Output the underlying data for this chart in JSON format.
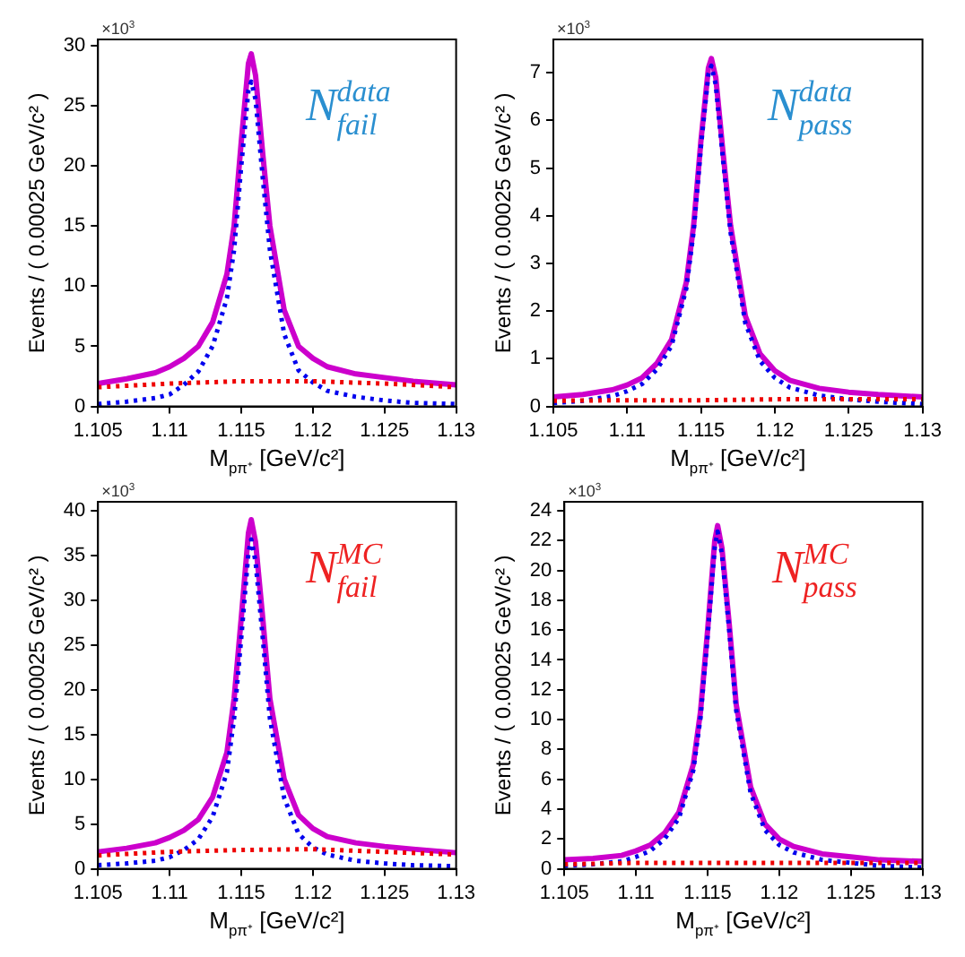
{
  "chart_data": [
    {
      "type": "line",
      "title": "N$^{data}$$_{fail}$",
      "xlabel": "M$_{pπ⁺}$ [GeV/c²]",
      "ylabel": "Events / ( 0.00025 GeV/c² )",
      "annotations": [
        "×10$^{3}$"
      ],
      "xlim": [
        1.105,
        1.13
      ],
      "xticks": [
        1.105,
        1.11,
        1.115,
        1.12,
        1.125,
        1.13
      ],
      "ylim": [
        0,
        30.5
      ],
      "yticks": [
        0,
        5,
        10,
        15,
        20,
        25,
        30
      ],
      "grid": false,
      "legend": false,
      "marker": "none",
      "x": [
        1.105,
        1.107,
        1.109,
        1.11,
        1.111,
        1.112,
        1.113,
        1.114,
        1.1145,
        1.115,
        1.1155,
        1.1157,
        1.116,
        1.1165,
        1.117,
        1.118,
        1.119,
        1.12,
        1.121,
        1.123,
        1.125,
        1.127,
        1.13
      ],
      "series": [
        {
          "color": "#cc00cc",
          "line_style": "solid",
          "values": [
            1.9,
            2.3,
            2.8,
            3.3,
            4.0,
            5.0,
            7.0,
            11,
            15,
            22,
            28.5,
            29.3,
            27.5,
            21,
            15,
            8,
            5,
            4,
            3.3,
            2.7,
            2.4,
            2.1,
            1.8
          ]
        },
        {
          "color": "#0000ee",
          "line_style": "dotted",
          "values": [
            0.2,
            0.4,
            0.7,
            1.0,
            1.8,
            2.9,
            5,
            9,
            13,
            20,
            26.3,
            27,
            25.5,
            19,
            13,
            6,
            3,
            2,
            1.3,
            0.8,
            0.5,
            0.3,
            0.2
          ]
        },
        {
          "color": "#ee0000",
          "line_style": "dotted",
          "x": [
            1.105,
            1.11,
            1.115,
            1.12,
            1.125,
            1.13
          ],
          "values": [
            1.6,
            1.9,
            2.1,
            2.1,
            1.9,
            1.6
          ]
        }
      ]
    },
    {
      "type": "line",
      "title": "N$^{data}$$_{pass}$",
      "xlabel": "M$_{pπ⁺}$ [GeV/c²]",
      "ylabel": "Events / ( 0.00025 GeV/c² )",
      "annotations": [
        "×10$^{3}$"
      ],
      "xlim": [
        1.105,
        1.13
      ],
      "xticks": [
        1.105,
        1.11,
        1.115,
        1.12,
        1.125,
        1.13
      ],
      "ylim": [
        0,
        7.7
      ],
      "yticks": [
        0,
        1,
        2,
        3,
        4,
        5,
        6,
        7
      ],
      "grid": false,
      "legend": false,
      "marker": "none",
      "x": [
        1.105,
        1.107,
        1.109,
        1.11,
        1.111,
        1.112,
        1.113,
        1.114,
        1.1145,
        1.115,
        1.1155,
        1.1157,
        1.116,
        1.1165,
        1.117,
        1.118,
        1.119,
        1.12,
        1.121,
        1.123,
        1.125,
        1.127,
        1.13
      ],
      "series": [
        {
          "color": "#cc00cc",
          "line_style": "solid",
          "values": [
            0.2,
            0.25,
            0.35,
            0.45,
            0.6,
            0.9,
            1.4,
            2.6,
            3.8,
            5.6,
            7.1,
            7.3,
            6.9,
            5.3,
            3.8,
            1.9,
            1.1,
            0.75,
            0.55,
            0.38,
            0.3,
            0.25,
            0.2
          ]
        },
        {
          "color": "#0000ee",
          "line_style": "dotted",
          "values": [
            0.07,
            0.12,
            0.22,
            0.32,
            0.47,
            0.77,
            1.27,
            2.47,
            3.67,
            5.47,
            6.97,
            7.15,
            6.75,
            5.15,
            3.65,
            1.75,
            0.95,
            0.6,
            0.4,
            0.23,
            0.15,
            0.1,
            0.05
          ]
        },
        {
          "color": "#ee0000",
          "line_style": "dotted",
          "x": [
            1.105,
            1.11,
            1.115,
            1.12,
            1.125,
            1.13
          ],
          "values": [
            0.12,
            0.13,
            0.13,
            0.15,
            0.15,
            0.15
          ]
        }
      ]
    },
    {
      "type": "line",
      "title": "N$^{MC}$$_{fail}$",
      "xlabel": "M$_{pπ⁺}$ [GeV/c²]",
      "ylabel": "Events / ( 0.00025 GeV/c² )",
      "annotations": [
        "×10$^{3}$"
      ],
      "xlim": [
        1.105,
        1.13
      ],
      "xticks": [
        1.105,
        1.11,
        1.115,
        1.12,
        1.125,
        1.13
      ],
      "ylim": [
        0,
        41
      ],
      "yticks": [
        0,
        5,
        10,
        15,
        20,
        25,
        30,
        35,
        40
      ],
      "grid": false,
      "legend": false,
      "marker": "none",
      "x": [
        1.105,
        1.107,
        1.109,
        1.11,
        1.111,
        1.112,
        1.113,
        1.114,
        1.1145,
        1.115,
        1.1155,
        1.1157,
        1.116,
        1.1165,
        1.117,
        1.118,
        1.119,
        1.12,
        1.121,
        1.123,
        1.125,
        1.127,
        1.13
      ],
      "series": [
        {
          "color": "#cc00cc",
          "line_style": "solid",
          "values": [
            1.9,
            2.3,
            2.9,
            3.5,
            4.3,
            5.5,
            8,
            13,
            19,
            28,
            37.5,
            39,
            36.5,
            28,
            19,
            10,
            6,
            4.5,
            3.6,
            2.9,
            2.5,
            2.2,
            1.8
          ]
        },
        {
          "color": "#0000ee",
          "line_style": "dotted",
          "values": [
            0.4,
            0.6,
            0.9,
            1.3,
            2.1,
            3.3,
            5.8,
            10.8,
            16.8,
            25.8,
            35.3,
            36.8,
            34.3,
            25.8,
            16.8,
            7.9,
            3.9,
            2.4,
            1.6,
            0.9,
            0.6,
            0.4,
            0.3
          ]
        },
        {
          "color": "#ee0000",
          "line_style": "dotted",
          "x": [
            1.105,
            1.11,
            1.115,
            1.12,
            1.125,
            1.13
          ],
          "values": [
            1.5,
            1.9,
            2.1,
            2.2,
            1.9,
            1.6
          ]
        }
      ]
    },
    {
      "type": "line",
      "title": "N$^{MC}$$_{pass}$",
      "xlabel": "M$_{pπ⁺}$ [GeV/c²]",
      "ylabel": "Events / ( 0.00025 GeV/c² )",
      "annotations": [
        "×10$^{3}$"
      ],
      "xlim": [
        1.105,
        1.13
      ],
      "xticks": [
        1.105,
        1.11,
        1.115,
        1.12,
        1.125,
        1.13
      ],
      "ylim": [
        0,
        24.6
      ],
      "yticks": [
        0,
        2,
        4,
        6,
        8,
        10,
        12,
        14,
        16,
        18,
        20,
        22,
        24
      ],
      "grid": false,
      "legend": false,
      "marker": "none",
      "x": [
        1.105,
        1.107,
        1.109,
        1.11,
        1.111,
        1.112,
        1.113,
        1.114,
        1.1145,
        1.115,
        1.1155,
        1.1157,
        1.116,
        1.1165,
        1.117,
        1.118,
        1.119,
        1.12,
        1.121,
        1.123,
        1.125,
        1.127,
        1.13
      ],
      "series": [
        {
          "color": "#cc00cc",
          "line_style": "solid",
          "values": [
            0.6,
            0.7,
            0.9,
            1.2,
            1.6,
            2.4,
            3.8,
            7,
            10.5,
            16,
            22,
            23,
            21.5,
            16.5,
            11,
            5.5,
            3,
            2,
            1.5,
            1.0,
            0.8,
            0.6,
            0.5
          ]
        },
        {
          "color": "#0000ee",
          "line_style": "dotted",
          "values": [
            0.2,
            0.3,
            0.5,
            0.8,
            1.2,
            2.0,
            3.4,
            6.6,
            10.1,
            15.6,
            21.6,
            22.6,
            21.1,
            16.1,
            10.6,
            5.1,
            2.6,
            1.6,
            1.1,
            0.6,
            0.4,
            0.2,
            0.1
          ]
        },
        {
          "color": "#ee0000",
          "line_style": "dotted",
          "x": [
            1.105,
            1.11,
            1.115,
            1.12,
            1.125,
            1.13
          ],
          "values": [
            0.3,
            0.4,
            0.4,
            0.4,
            0.4,
            0.4
          ]
        }
      ]
    }
  ]
}
